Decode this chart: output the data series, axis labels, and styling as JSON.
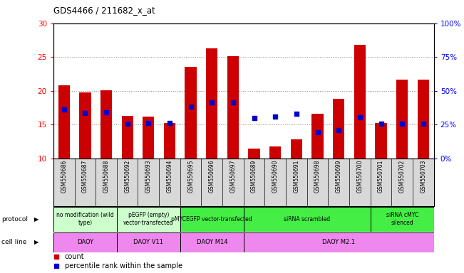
{
  "title": "GDS4466 / 211682_x_at",
  "samples": [
    "GSM550686",
    "GSM550687",
    "GSM550688",
    "GSM550692",
    "GSM550693",
    "GSM550694",
    "GSM550695",
    "GSM550696",
    "GSM550697",
    "GSM550689",
    "GSM550690",
    "GSM550691",
    "GSM550698",
    "GSM550699",
    "GSM550700",
    "GSM550701",
    "GSM550702",
    "GSM550703"
  ],
  "counts": [
    20.8,
    19.8,
    20.1,
    16.3,
    16.2,
    15.2,
    23.5,
    26.3,
    25.1,
    11.4,
    11.8,
    12.8,
    16.6,
    18.8,
    26.8,
    15.2,
    21.7,
    21.7
  ],
  "pct_dot_y": [
    17.2,
    16.7,
    16.8,
    15.15,
    15.2,
    15.2,
    17.6,
    18.3,
    18.3,
    16.0,
    16.2,
    16.6,
    13.9,
    14.2,
    16.1,
    15.15,
    15.15,
    15.15
  ],
  "ylim_left": [
    10,
    30
  ],
  "ylim_right": [
    0,
    100
  ],
  "yticks_left": [
    10,
    15,
    20,
    25,
    30
  ],
  "yticks_right": [
    0,
    25,
    50,
    75,
    100
  ],
  "bar_color": "#cc0000",
  "dot_color": "#0000cc",
  "grid_color": "#888888",
  "sample_bg": "#d8d8d8",
  "protocol_data": [
    {
      "start": 0,
      "end": 3,
      "color": "#ccffcc",
      "label": "no modification (wild\ntype)"
    },
    {
      "start": 3,
      "end": 6,
      "color": "#ccffcc",
      "label": "pEGFP (empty)\nvector-transfected"
    },
    {
      "start": 6,
      "end": 9,
      "color": "#44ee44",
      "label": "pMYCEGFP vector-transfected"
    },
    {
      "start": 9,
      "end": 15,
      "color": "#44ee44",
      "label": "siRNA scrambled"
    },
    {
      "start": 15,
      "end": 18,
      "color": "#44ee44",
      "label": "siRNA cMYC\nsilenced"
    }
  ],
  "cellline_data": [
    {
      "start": 0,
      "end": 3,
      "color": "#ee88ee",
      "label": "DAOY"
    },
    {
      "start": 3,
      "end": 6,
      "color": "#ee88ee",
      "label": "DAOY V11"
    },
    {
      "start": 6,
      "end": 9,
      "color": "#ee88ee",
      "label": "DAOY M14"
    },
    {
      "start": 9,
      "end": 18,
      "color": "#ee88ee",
      "label": "DAOY M2.1"
    }
  ]
}
